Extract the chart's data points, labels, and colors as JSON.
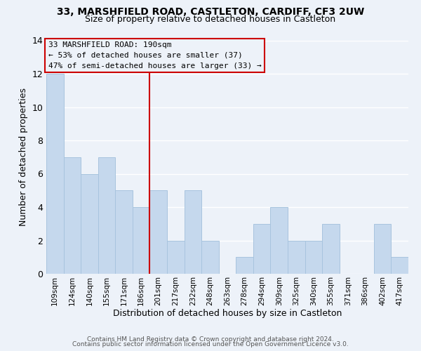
{
  "title": "33, MARSHFIELD ROAD, CASTLETON, CARDIFF, CF3 2UW",
  "subtitle": "Size of property relative to detached houses in Castleton",
  "xlabel": "Distribution of detached houses by size in Castleton",
  "ylabel": "Number of detached properties",
  "bar_labels": [
    "109sqm",
    "124sqm",
    "140sqm",
    "155sqm",
    "171sqm",
    "186sqm",
    "201sqm",
    "217sqm",
    "232sqm",
    "248sqm",
    "263sqm",
    "278sqm",
    "294sqm",
    "309sqm",
    "325sqm",
    "340sqm",
    "355sqm",
    "371sqm",
    "386sqm",
    "402sqm",
    "417sqm"
  ],
  "bar_values": [
    12,
    7,
    6,
    7,
    5,
    4,
    5,
    2,
    5,
    2,
    0,
    1,
    3,
    4,
    2,
    2,
    3,
    0,
    0,
    3,
    1
  ],
  "bar_color": "#c5d8ed",
  "bar_edgecolor": "#a8c4de",
  "vline_x": 5.5,
  "vline_color": "#cc0000",
  "ylim": [
    0,
    14
  ],
  "yticks": [
    0,
    2,
    4,
    6,
    8,
    10,
    12,
    14
  ],
  "annotation_title": "33 MARSHFIELD ROAD: 190sqm",
  "annotation_line1": "← 53% of detached houses are smaller (37)",
  "annotation_line2": "47% of semi-detached houses are larger (33) →",
  "annotation_box_edgecolor": "#cc0000",
  "footer_line1": "Contains HM Land Registry data © Crown copyright and database right 2024.",
  "footer_line2": "Contains public sector information licensed under the Open Government Licence v3.0.",
  "background_color": "#edf2f9",
  "grid_color": "#ffffff"
}
